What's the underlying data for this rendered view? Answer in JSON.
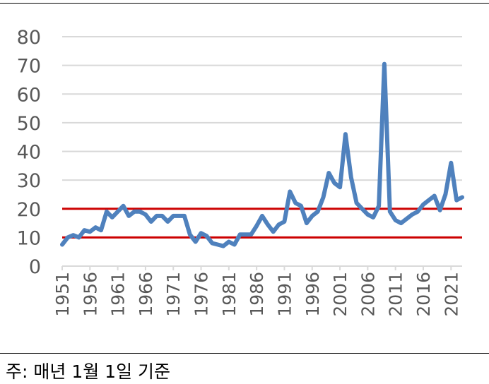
{
  "footnote": "주: 매년 1월 1일 기준",
  "colors": {
    "series": "#4f81bd",
    "reference": "#cc0000",
    "grid": "#d9d9d9",
    "tick_text": "#595959"
  },
  "chart_data": {
    "type": "line",
    "title": "",
    "xlabel": "",
    "ylabel": "",
    "ylim": [
      0,
      80
    ],
    "yticks": [
      0,
      10,
      20,
      30,
      40,
      50,
      60,
      70,
      80
    ],
    "xticks": [
      "1951",
      "1956",
      "1961",
      "1966",
      "1971",
      "1976",
      "1981",
      "1986",
      "1991",
      "1996",
      "2001",
      "2006",
      "2011",
      "2016",
      "2021"
    ],
    "grid": true,
    "legend": "none",
    "reference_lines": [
      20,
      10
    ],
    "x": [
      1951,
      1952,
      1953,
      1954,
      1955,
      1956,
      1957,
      1958,
      1959,
      1960,
      1961,
      1962,
      1963,
      1964,
      1965,
      1966,
      1967,
      1968,
      1969,
      1970,
      1971,
      1972,
      1973,
      1974,
      1975,
      1976,
      1977,
      1978,
      1979,
      1980,
      1981,
      1982,
      1983,
      1984,
      1985,
      1986,
      1987,
      1988,
      1989,
      1990,
      1991,
      1992,
      1993,
      1994,
      1995,
      1996,
      1997,
      1998,
      1999,
      2000,
      2001,
      2002,
      2003,
      2004,
      2005,
      2006,
      2007,
      2008,
      2009,
      2010,
      2011,
      2012,
      2013,
      2014,
      2015,
      2016,
      2017,
      2018,
      2019,
      2020,
      2021,
      2022,
      2023
    ],
    "series": [
      {
        "values": [
          7.5,
          10,
          10.8,
          10,
          12.5,
          12,
          13.5,
          12.5,
          19,
          17,
          19,
          21,
          17.5,
          19,
          19,
          18,
          15.5,
          17.5,
          17.5,
          15.5,
          17.5,
          17.5,
          17.5,
          11,
          8.5,
          11.5,
          10.5,
          8,
          7.5,
          7,
          8.5,
          7.5,
          11,
          11,
          11,
          14,
          17.5,
          14.5,
          12,
          14.5,
          15.5,
          26,
          22,
          21,
          15,
          17.5,
          19,
          24,
          32.5,
          29,
          27.5,
          46,
          31,
          22,
          20,
          18,
          17,
          21,
          70.5,
          19,
          16,
          15,
          16.5,
          18,
          19,
          21.5,
          23,
          24.5,
          19.5,
          25,
          36,
          23,
          24
        ]
      }
    ]
  }
}
